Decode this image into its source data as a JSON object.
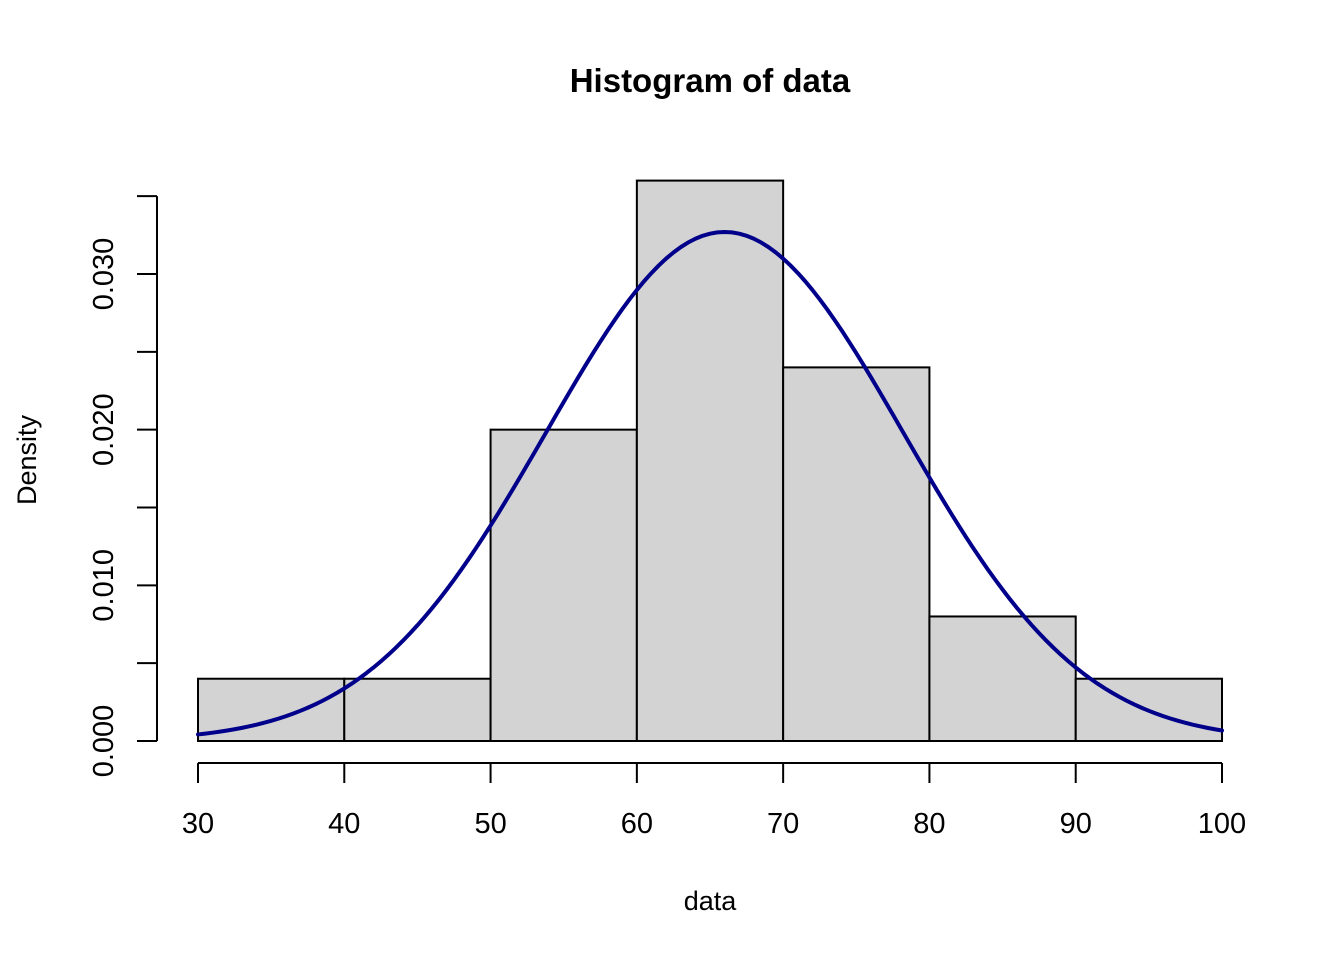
{
  "chart_data": {
    "type": "bar",
    "title": "Histogram of data",
    "xlabel": "data",
    "ylabel": "Density",
    "xlim": [
      30,
      100
    ],
    "ylim": [
      0,
      0.035
    ],
    "bins": [
      {
        "start": 30,
        "end": 40,
        "density": 0.004
      },
      {
        "start": 40,
        "end": 50,
        "density": 0.004
      },
      {
        "start": 50,
        "end": 60,
        "density": 0.02
      },
      {
        "start": 60,
        "end": 70,
        "density": 0.036
      },
      {
        "start": 70,
        "end": 80,
        "density": 0.024
      },
      {
        "start": 80,
        "end": 90,
        "density": 0.008
      },
      {
        "start": 90,
        "end": 100,
        "density": 0.004
      }
    ],
    "x_ticks": [
      "30",
      "40",
      "50",
      "60",
      "70",
      "80",
      "90",
      "100"
    ],
    "y_ticks": [
      "0.000",
      "0.010",
      "0.020",
      "0.030"
    ],
    "y_minor_ticks": [
      0.005,
      0.015,
      0.025,
      0.035
    ],
    "density_curve": {
      "distribution": "normal",
      "mean": 66,
      "sd": 12.2,
      "x_range": [
        30,
        100
      ],
      "color": "#00008b"
    },
    "bar_fill": "#d3d3d3",
    "bar_stroke": "#000000",
    "grid": false,
    "legend": "none"
  }
}
